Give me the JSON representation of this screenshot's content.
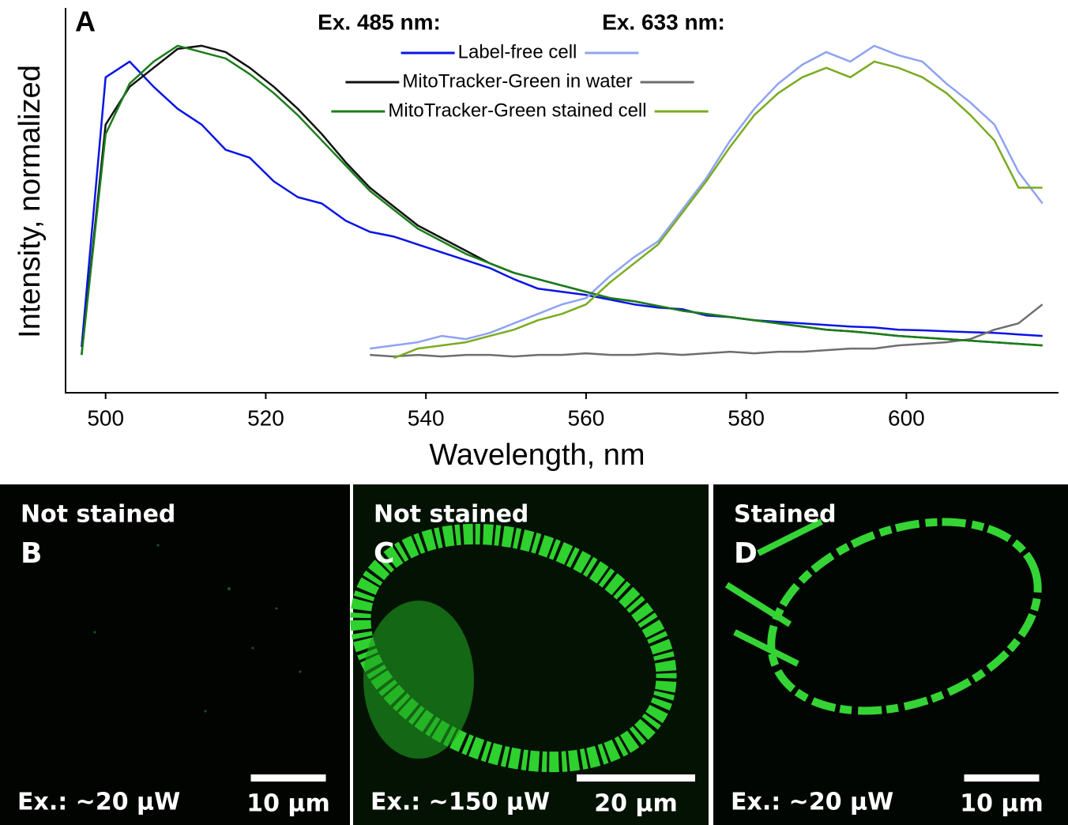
{
  "chart_data": {
    "type": "line",
    "panel_label": "A",
    "x_label": "Wavelength, nm",
    "y_label": "Intensity, normalized",
    "xlim": [
      495,
      619
    ],
    "xticks": [
      500,
      520,
      540,
      560,
      580,
      600
    ],
    "ylim": [
      -0.1,
      1.12
    ],
    "excitations": [
      "Ex. 485 nm:",
      "Ex. 633 nm:"
    ],
    "x": [
      497,
      500,
      503,
      506,
      509,
      512,
      515,
      518,
      521,
      524,
      527,
      530,
      533,
      536,
      539,
      542,
      545,
      548,
      551,
      554,
      557,
      560,
      563,
      566,
      569,
      572,
      575,
      578,
      581,
      584,
      587,
      590,
      593,
      596,
      599,
      602,
      605,
      608,
      611,
      614,
      617
    ],
    "series": [
      {
        "name": "Label-free cell",
        "lines": [
          {
            "color": "#0a14e6",
            "values": [
              0.045,
              0.9,
              0.95,
              0.87,
              0.8,
              0.75,
              0.67,
              0.645,
              0.57,
              0.52,
              0.5,
              0.445,
              0.41,
              0.395,
              0.37,
              0.345,
              0.32,
              0.295,
              0.26,
              0.23,
              0.22,
              0.21,
              0.195,
              0.18,
              0.17,
              0.165,
              0.145,
              0.14,
              0.13,
              0.125,
              0.12,
              0.115,
              0.11,
              0.107,
              0.1,
              0.098,
              0.095,
              0.092,
              0.09,
              0.085,
              0.08
            ]
          },
          {
            "color": "#8fa3f2",
            "values": [
              null,
              null,
              null,
              null,
              null,
              null,
              null,
              null,
              null,
              null,
              null,
              null,
              0.04,
              0.05,
              0.06,
              0.08,
              0.07,
              0.09,
              0.12,
              0.15,
              0.18,
              0.2,
              0.27,
              0.33,
              0.38,
              0.48,
              0.58,
              0.7,
              0.8,
              0.88,
              0.94,
              0.98,
              0.95,
              1.0,
              0.97,
              0.95,
              0.88,
              0.82,
              0.75,
              0.6,
              0.5
            ]
          }
        ]
      },
      {
        "name": "MitoTracker-Green in water",
        "lines": [
          {
            "color": "#111111",
            "values": [
              0.02,
              0.75,
              0.87,
              0.93,
              0.99,
              1.0,
              0.98,
              0.93,
              0.87,
              0.8,
              0.72,
              0.63,
              0.55,
              0.49,
              0.43,
              0.39,
              0.35,
              0.31,
              0.28,
              0.26,
              0.24,
              0.22,
              0.2,
              0.19,
              0.175,
              0.16,
              0.15,
              0.14,
              0.13,
              0.12,
              0.11,
              0.1,
              0.095,
              0.088,
              0.08,
              0.075,
              0.07,
              0.065,
              0.06,
              0.055,
              0.05
            ]
          },
          {
            "color": "#6e6e6e",
            "values": [
              null,
              null,
              null,
              null,
              null,
              null,
              null,
              null,
              null,
              null,
              null,
              null,
              0.02,
              0.015,
              0.02,
              0.015,
              0.02,
              0.02,
              0.015,
              0.02,
              0.02,
              0.025,
              0.02,
              0.02,
              0.025,
              0.02,
              0.025,
              0.03,
              0.025,
              0.03,
              0.03,
              0.035,
              0.04,
              0.04,
              0.05,
              0.055,
              0.06,
              0.07,
              0.1,
              0.12,
              0.18
            ]
          }
        ]
      },
      {
        "name": "MitoTracker-Green stained cell",
        "lines": [
          {
            "color": "#1b7d1b",
            "values": [
              0.02,
              0.72,
              0.88,
              0.95,
              1.0,
              0.98,
              0.96,
              0.91,
              0.85,
              0.78,
              0.7,
              0.62,
              0.54,
              0.48,
              0.42,
              0.38,
              0.34,
              0.31,
              0.28,
              0.26,
              0.24,
              0.22,
              0.2,
              0.19,
              0.175,
              0.16,
              0.15,
              0.14,
              0.13,
              0.12,
              0.11,
              0.1,
              0.095,
              0.088,
              0.08,
              0.075,
              0.07,
              0.065,
              0.06,
              0.055,
              0.05
            ]
          },
          {
            "color": "#7aab22",
            "values": [
              null,
              null,
              null,
              null,
              null,
              null,
              null,
              null,
              null,
              null,
              null,
              null,
              null,
              0.01,
              0.04,
              0.05,
              0.06,
              0.08,
              0.1,
              0.13,
              0.15,
              0.18,
              0.25,
              0.31,
              0.37,
              0.47,
              0.57,
              0.68,
              0.78,
              0.85,
              0.9,
              0.93,
              0.9,
              0.95,
              0.93,
              0.9,
              0.85,
              0.78,
              0.7,
              0.55,
              0.55
            ]
          }
        ]
      }
    ]
  },
  "panels": [
    {
      "caption": "Not stained",
      "label": "B",
      "excitation": "Ex.: ~20 μW",
      "scale_bar": "10 μm"
    },
    {
      "caption": "Not stained",
      "label": "C",
      "excitation": "Ex.: ~150 μW",
      "scale_bar": "20 μm"
    },
    {
      "caption": "Stained",
      "label": "D",
      "excitation": "Ex.: ~20 μW",
      "scale_bar": "10 μm"
    }
  ]
}
